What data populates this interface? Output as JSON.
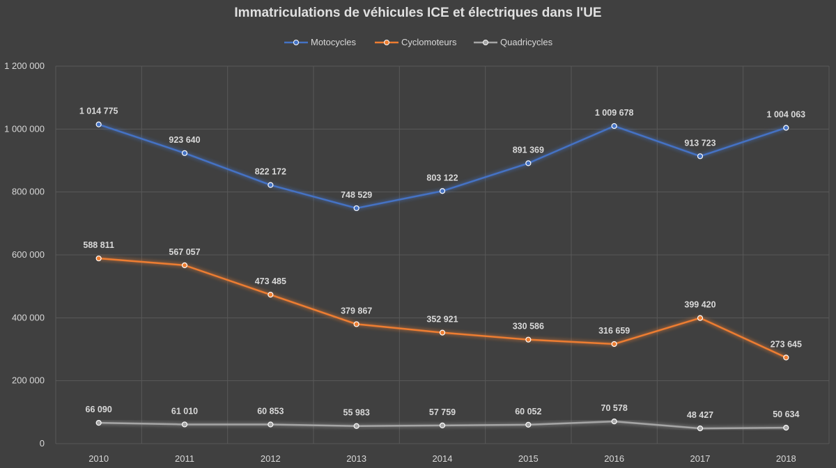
{
  "chart_data": {
    "type": "line",
    "title": "Immatriculations de véhicules ICE et électriques dans l'UE",
    "categories": [
      "2010",
      "2011",
      "2012",
      "2013",
      "2014",
      "2015",
      "2016",
      "2017",
      "2018"
    ],
    "ylim": [
      0,
      1200000
    ],
    "yticks": [
      0,
      200000,
      400000,
      600000,
      800000,
      1000000,
      1200000
    ],
    "ytick_labels": [
      "0",
      "200 000",
      "400 000",
      "600 000",
      "800 000",
      "1 000 000",
      "1 200 000"
    ],
    "grid": true,
    "legend_position": "top",
    "series": [
      {
        "name": "Motocycles",
        "color": "#4472C4",
        "values": [
          1014775,
          923640,
          822172,
          748529,
          803122,
          891369,
          1009678,
          913723,
          1004063
        ],
        "labels": [
          "1 014 775",
          "923 640",
          "822 172",
          "748 529",
          "803 122",
          "891 369",
          "1 009 678",
          "913 723",
          "1 004 063"
        ]
      },
      {
        "name": "Cyclomoteurs",
        "color": "#ED7D31",
        "values": [
          588811,
          567057,
          473485,
          379867,
          352921,
          330586,
          316659,
          399420,
          273645
        ],
        "labels": [
          "588 811",
          "567 057",
          "473 485",
          "379 867",
          "352 921",
          "330 586",
          "316 659",
          "399 420",
          "273 645"
        ]
      },
      {
        "name": "Quadricycles",
        "color": "#A5A5A5",
        "values": [
          66090,
          61010,
          60853,
          55983,
          57759,
          60052,
          70578,
          48427,
          50634
        ],
        "labels": [
          "66 090",
          "61 010",
          "60 853",
          "55 983",
          "57 759",
          "60 052",
          "70 578",
          "48 427",
          "50 634"
        ]
      }
    ]
  }
}
